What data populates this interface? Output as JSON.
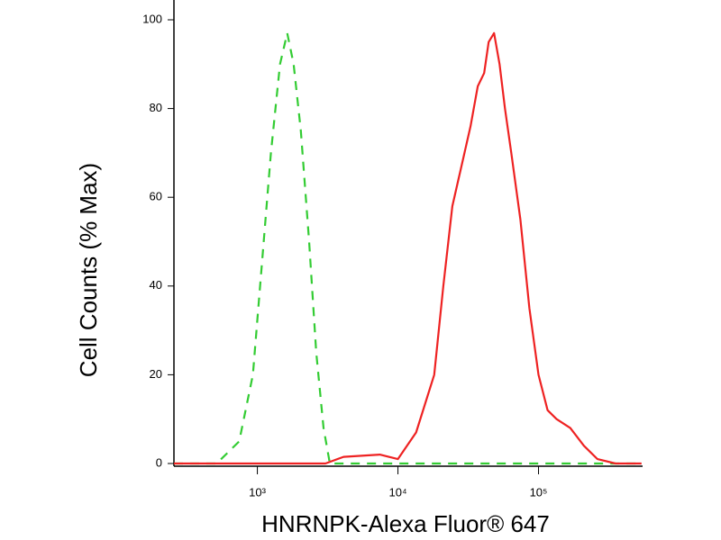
{
  "chart_data": {
    "type": "line",
    "xlabel": "HNRNPK-Alexa Fluor® 647",
    "ylabel": "Cell Counts (% Max)",
    "xscale": "log",
    "xlim": [
      255,
      550000
    ],
    "ylim": [
      0,
      100
    ],
    "xticks": [
      {
        "value": 1000,
        "label": "10³"
      },
      {
        "value": 10000,
        "label": "10⁴"
      },
      {
        "value": 100000,
        "label": "10⁵"
      }
    ],
    "yticks": [
      0,
      20,
      40,
      60,
      80,
      100
    ],
    "series": [
      {
        "color": "#33cc33",
        "linestyle": "dashed",
        "x": [
          255,
          513,
          743,
          929,
          1077,
          1249,
          1449,
          1632,
          1811,
          2039,
          2334,
          2625,
          2958,
          3277,
          10000,
          100000,
          540000
        ],
        "values": [
          0,
          0,
          5,
          20,
          45,
          70,
          90,
          97,
          90,
          75,
          50,
          25,
          8,
          0,
          0,
          0,
          0
        ]
      },
      {
        "color": "#ee2222",
        "linestyle": "solid",
        "x": [
          255,
          3048,
          4102,
          7430,
          10000,
          13460,
          18120,
          21020,
          24380,
          28300,
          32830,
          36980,
          41040,
          44170,
          48300,
          52840,
          57700,
          64000,
          74300,
          86100,
          100000,
          116000,
          134600,
          168300,
          210400,
          262600,
          353000,
          540000
        ],
        "values": [
          0,
          0,
          1.5,
          2,
          1,
          7,
          20,
          40,
          58,
          67,
          76,
          85,
          88,
          95,
          97,
          90,
          80,
          70,
          55,
          35,
          20,
          12,
          10,
          8,
          4,
          1,
          0,
          0
        ]
      }
    ]
  }
}
